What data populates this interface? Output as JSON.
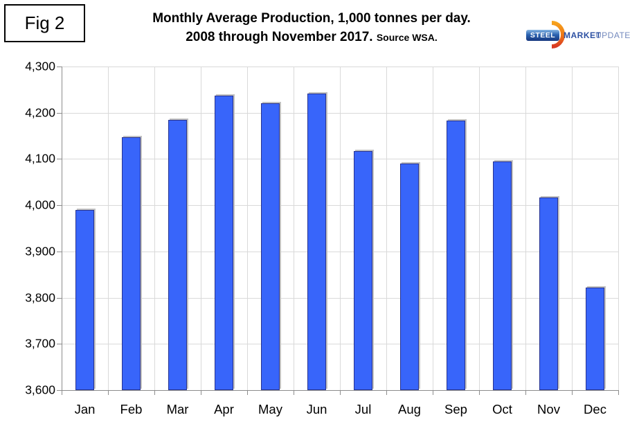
{
  "figure_label": "Fig 2",
  "header": {
    "title_line1": "Monthly Average Production, 1,000 tonnes per day.",
    "title_line2": "2008 through November 2017.",
    "source_note": "Source WSA."
  },
  "logo": {
    "steel": "STEEL",
    "market": "MARKET",
    "update": "UPDATE"
  },
  "chart_data": {
    "type": "bar",
    "title": "Monthly Average Production, 1,000 tonnes per day. 2008 through November 2017.",
    "source": "Source WSA.",
    "categories": [
      "Jan",
      "Feb",
      "Mar",
      "Apr",
      "May",
      "Jun",
      "Jul",
      "Aug",
      "Sep",
      "Oct",
      "Nov",
      "Dec"
    ],
    "values": [
      3989,
      4147,
      4185,
      4237,
      4221,
      4242,
      4117,
      4090,
      4183,
      4095,
      4017,
      3822
    ],
    "ylim": [
      3600,
      4300
    ],
    "ytick_step": 100,
    "ytick_labels": [
      "3,600",
      "3,700",
      "3,800",
      "3,900",
      "4,000",
      "4,100",
      "4,200",
      "4,300"
    ],
    "xlabel": "",
    "ylabel": "",
    "grid": true,
    "legend": "none",
    "bar_color": "#3865fa",
    "bar_border_color": "#28338f",
    "gridline_color": "#d9d9d9",
    "axis_color": "#8c8c8c"
  }
}
